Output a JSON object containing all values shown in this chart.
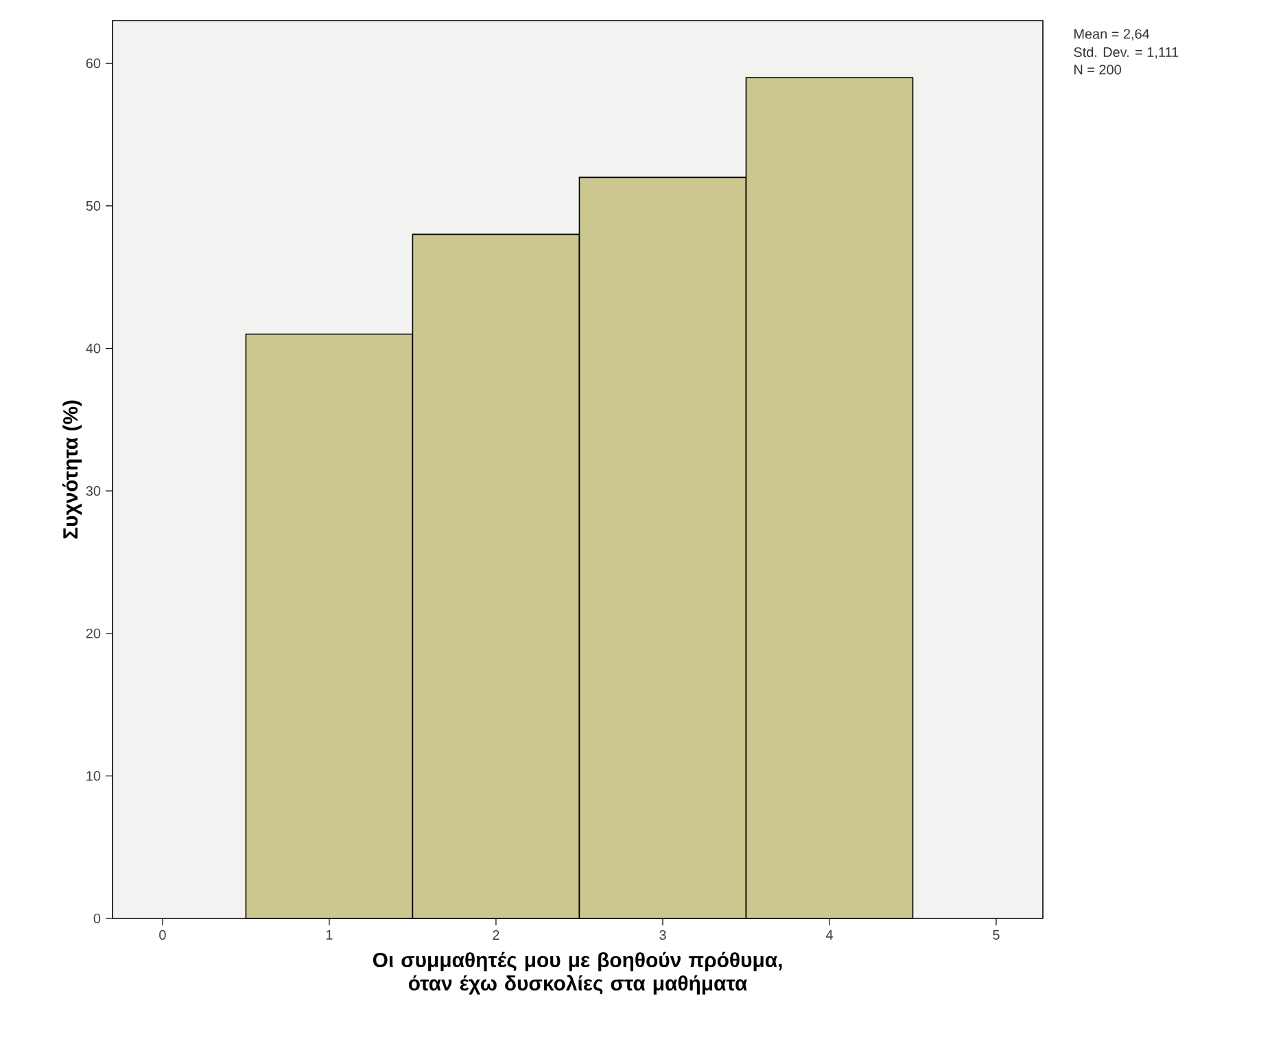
{
  "chart_data": {
    "type": "histogram",
    "xlabel": "Οι συμμαθητές μου με βοηθούν πρόθυμα, όταν έχω δυσκολίες στα μαθήματα",
    "ylabel": "Συχνότητα (%)",
    "bins": [
      0.5,
      1.5,
      2.5,
      3.5,
      4.5
    ],
    "values": [
      41,
      48,
      52,
      59
    ],
    "color": "#cbc78e",
    "xlim": [
      -0.3,
      5.28
    ],
    "xticks": [
      0,
      1,
      2,
      3,
      4,
      5
    ],
    "ylim": [
      0,
      63
    ],
    "yticks": [
      0,
      10,
      20,
      30,
      40,
      50,
      60
    ],
    "annotations": [
      "Mean = 2,64",
      "Std. Dev. = 1,111",
      "N = 200"
    ]
  }
}
